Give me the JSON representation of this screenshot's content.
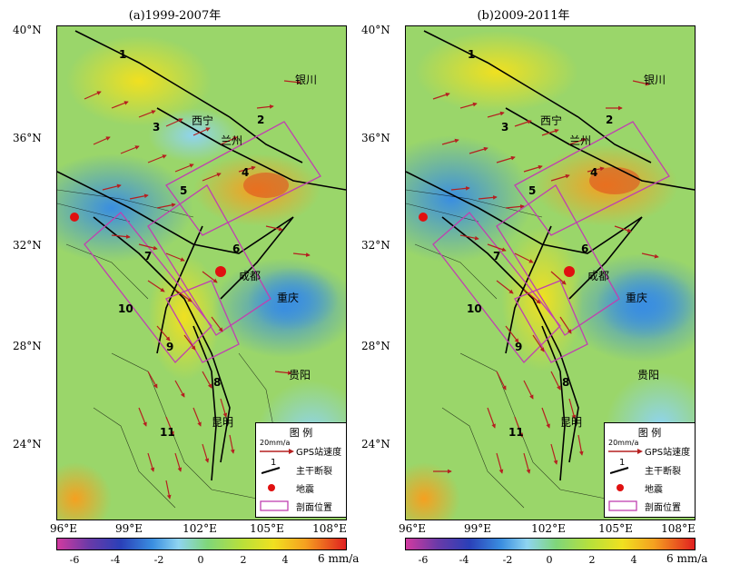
{
  "panels": [
    {
      "id": "a",
      "title": "(a)1999-2007年",
      "lat_labels": [
        "40°N",
        "36°N",
        "32°N",
        "28°N",
        "24°N"
      ],
      "lon_labels": [
        "96°E",
        "99°E",
        "102°E",
        "105°E",
        "108°E"
      ],
      "cities": [
        "银川",
        "西宁",
        "兰州",
        "成都",
        "重庆",
        "贵阳",
        "昆明"
      ],
      "fault_numbers": [
        "1",
        "2",
        "3",
        "4",
        "5",
        "6",
        "7",
        "8",
        "9",
        "10",
        "11"
      ],
      "colorbar": {
        "ticks": [
          "-6",
          "-4",
          "-2",
          "0",
          "2",
          "4",
          "6"
        ],
        "unit": "mm/a"
      },
      "legend": {
        "title": "图  例",
        "scale": "20mm/a",
        "vector": "GPS站速度",
        "fault_num": "1",
        "fault": "主干断裂",
        "quake": "地震",
        "profile": "剖面位置"
      }
    },
    {
      "id": "b",
      "title": "(b)2009-2011年",
      "lat_labels": [
        "40°N",
        "36°N",
        "32°N",
        "28°N",
        "24°N"
      ],
      "lon_labels": [
        "96°E",
        "99°E",
        "102°E",
        "105°E",
        "108°E"
      ],
      "cities": [
        "银川",
        "西宁",
        "兰州",
        "成都",
        "重庆",
        "贵阳",
        "昆明"
      ],
      "fault_numbers": [
        "1",
        "2",
        "3",
        "4",
        "5",
        "6",
        "7",
        "8",
        "9",
        "10",
        "11"
      ],
      "colorbar": {
        "ticks": [
          "-6",
          "-4",
          "-2",
          "0",
          "2",
          "4",
          "6"
        ],
        "unit": "mm/a"
      },
      "legend": {
        "title": "图  例",
        "scale": "20mm/a",
        "vector": "GPS站速度",
        "fault_num": "1",
        "fault": "主干断裂",
        "quake": "地震",
        "profile": "剖面位置"
      }
    }
  ],
  "colors": {
    "vector": "#b52020",
    "quake": "#e01010",
    "profile": "#c040b0",
    "fault": "#000000"
  }
}
